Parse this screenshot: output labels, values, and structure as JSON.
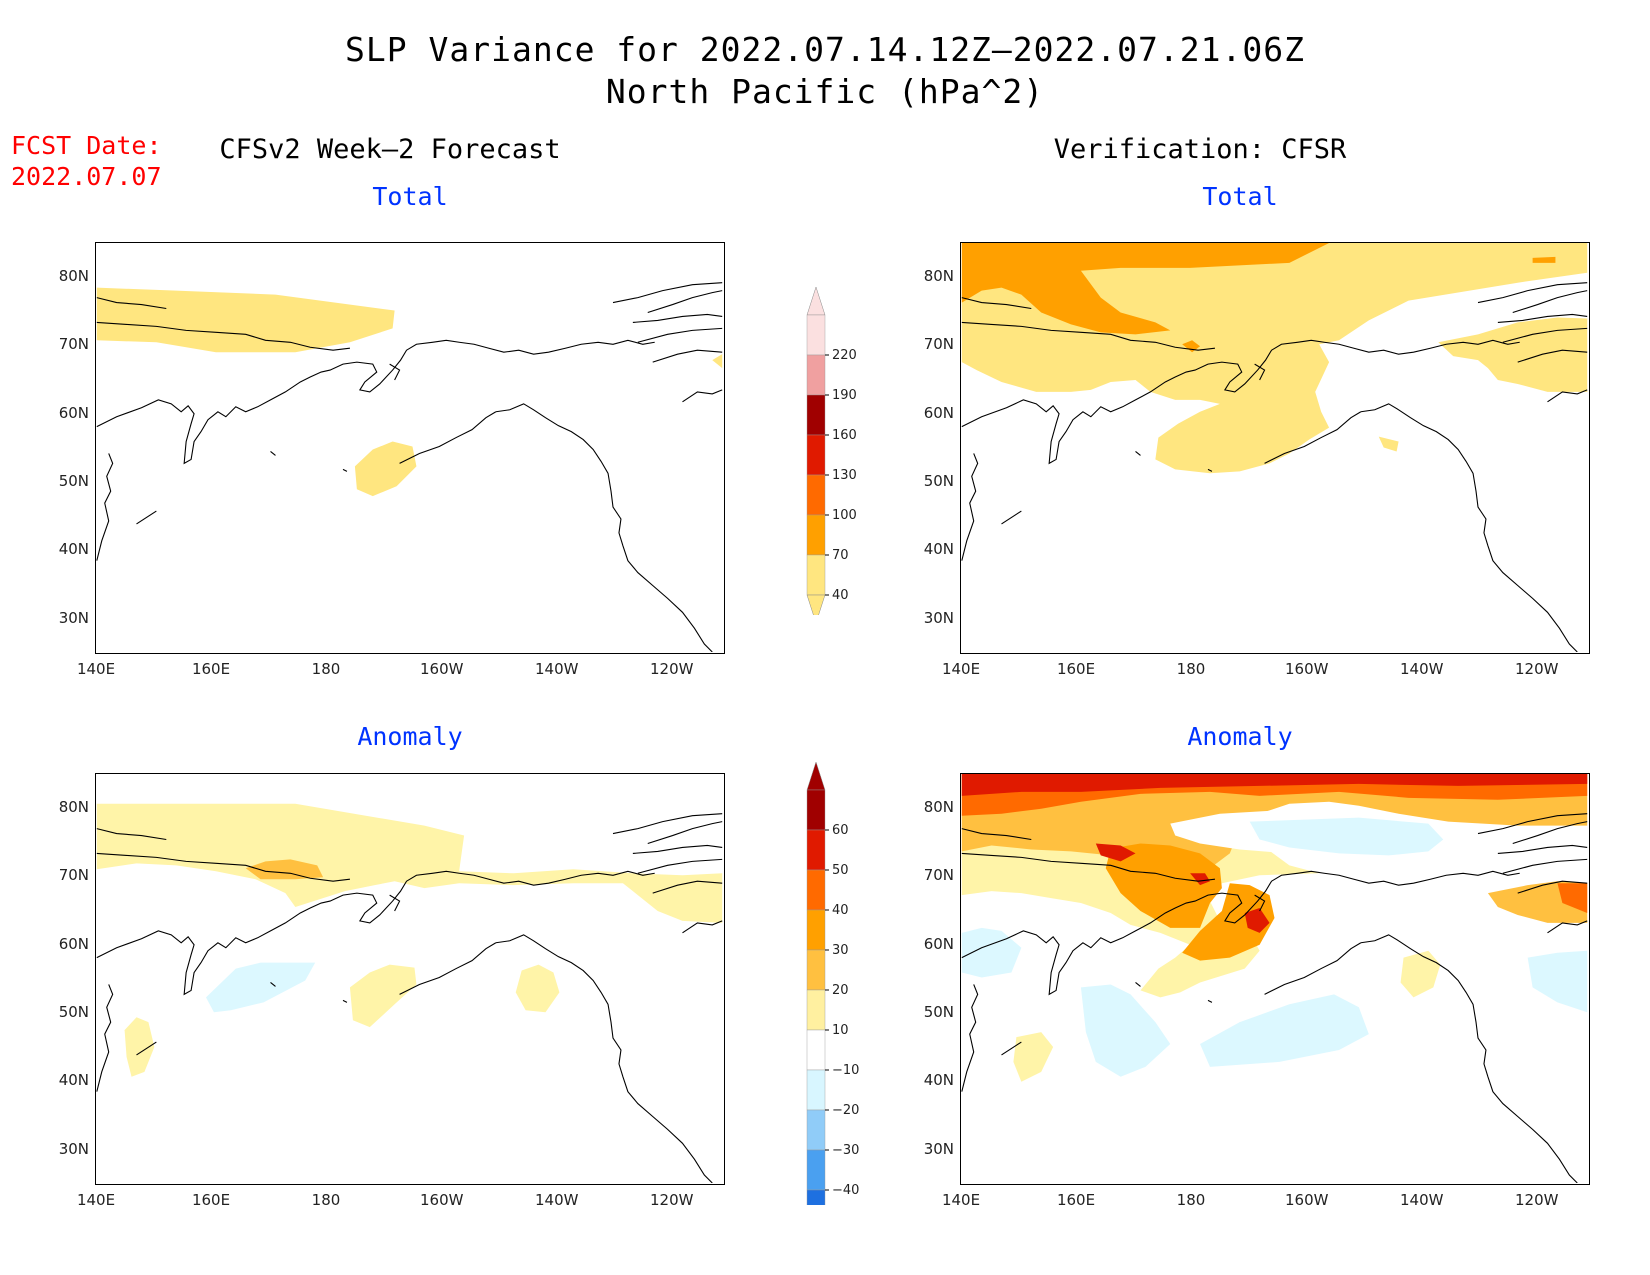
{
  "header": {
    "title": "SLP Variance for 2022.07.14.12Z–2022.07.21.06Z",
    "subtitle": "North Pacific (hPa^2)",
    "fcst_label": "FCST Date:",
    "fcst_date": "2022.07.07"
  },
  "columns": {
    "left_title": "CFSv2 Week–2 Forecast",
    "right_title": "Verification: CFSR"
  },
  "panels": {
    "total": "Total",
    "anomaly": "Anomaly"
  },
  "axes": {
    "lon_ticks": [
      "140E",
      "160E",
      "180",
      "160W",
      "140W",
      "120W"
    ],
    "lat_ticks": [
      "80N",
      "70N",
      "60N",
      "50N",
      "40N",
      "30N"
    ]
  },
  "colorbar_total": {
    "labels": [
      "220",
      "190",
      "160",
      "130",
      "100",
      "70",
      "40"
    ],
    "colors": [
      "#fbe0e0",
      "#f0a0a0",
      "#a00000",
      "#e01a00",
      "#ff6a00",
      "#ffa000",
      "#ffe680"
    ]
  },
  "colorbar_anomaly": {
    "labels": [
      "60",
      "50",
      "40",
      "30",
      "20",
      "10",
      "−10",
      "−20",
      "−30",
      "−40"
    ],
    "colors": [
      "#a00000",
      "#e01a00",
      "#ff6a00",
      "#ffa000",
      "#ffc040",
      "#fff0a0",
      "#ffffff",
      "#d8f6ff",
      "#90ccf8",
      "#4aa0f0",
      "#1e70e0"
    ]
  },
  "fields": {
    "yellow": "#ffe680",
    "pale_yellow": "#fff4a8",
    "orange": "#ffa000",
    "light_orange": "#ffc040",
    "dark_orange": "#ff6a00",
    "red": "#e01a00",
    "dark_red": "#c00000",
    "cyan": "#dcf8ff"
  }
}
